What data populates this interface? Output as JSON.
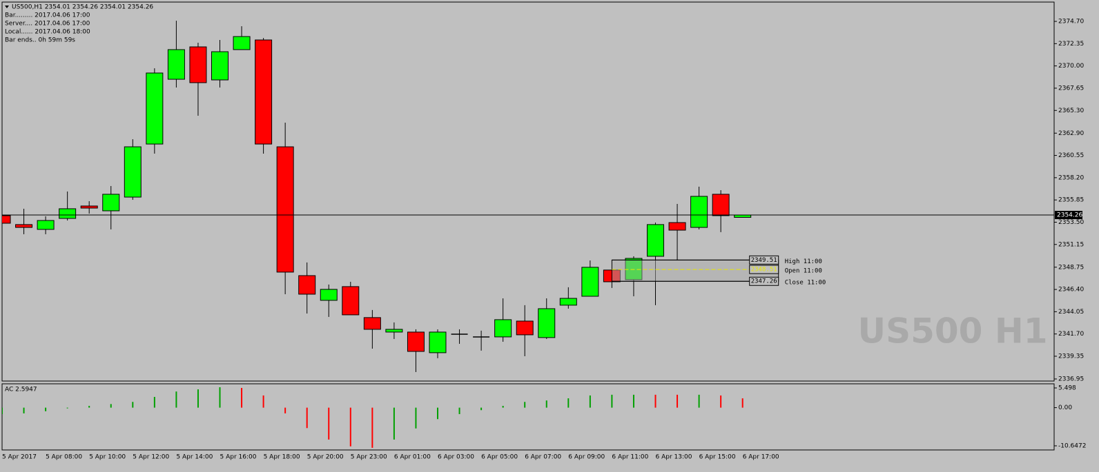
{
  "chart_data": [
    {
      "type": "candlestick",
      "title": "US500,H1  2354.01 2354.26 2354.01 2354.26",
      "info_lines": [
        "Bar......... 2017.04.06 17:00",
        "Server.... 2017.04.06 17:00",
        "Local...... 2017.04.06 18:00",
        "Bar ends.. 0h 59m 59s"
      ],
      "watermark": "US500 H1",
      "categories": [
        "5 Apr 2017",
        null,
        "5 Apr 08:00",
        null,
        "5 Apr 10:00",
        null,
        "5 Apr 12:00",
        null,
        "5 Apr 14:00",
        null,
        "5 Apr 16:00",
        null,
        "5 Apr 18:00",
        null,
        "5 Apr 20:00",
        null,
        "5 Apr 23:00",
        null,
        "6 Apr 01:00",
        null,
        "6 Apr 03:00",
        null,
        "6 Apr 05:00",
        null,
        "6 Apr 07:00",
        null,
        "6 Apr 09:00",
        null,
        "6 Apr 11:00",
        null,
        "6 Apr 13:00",
        null,
        "6 Apr 15:00",
        null,
        "6 Apr 17:00"
      ],
      "open": [
        2354.19,
        2353.25,
        2352.74,
        2353.9,
        2355.21,
        2354.7,
        2356.15,
        2361.75,
        2368.59,
        2372.01,
        2368.52,
        2371.72,
        2372.74,
        2361.46,
        2347.86,
        2345.25,
        2346.7,
        2343.43,
        2341.9,
        2341.9,
        2339.72,
        2341.68,
        2341.39,
        2341.39,
        2343.06,
        2341.32,
        2344.74,
        2345.68,
        2348.45,
        2347.43,
        2349.9,
        2353.46,
        2352.95,
        2356.45,
        2354.01
      ],
      "high": [
        2355.14,
        2354.92,
        2354.12,
        2356.74,
        2355.72,
        2357.32,
        2362.26,
        2369.75,
        2374.77,
        2372.45,
        2372.74,
        2374.19,
        2372.95,
        2364.01,
        2349.25,
        2346.92,
        2347.21,
        2344.23,
        2342.92,
        2342.19,
        2342.19,
        2342.19,
        2342.05,
        2345.46,
        2344.74,
        2345.46,
        2346.63,
        2349.46,
        2348.45,
        2349.9,
        2353.46,
        2355.43,
        2357.25,
        2356.88,
        2354.26
      ],
      "low": [
        2352.81,
        2352.23,
        2352.23,
        2353.68,
        2354.41,
        2352.74,
        2355.86,
        2360.74,
        2367.72,
        2364.74,
        2367.72,
        2371.72,
        2360.74,
        2345.9,
        2343.86,
        2343.5,
        2343.72,
        2340.15,
        2341.17,
        2337.68,
        2339.14,
        2340.66,
        2339.94,
        2340.88,
        2339.35,
        2341.17,
        2344.37,
        2345.68,
        2346.56,
        2345.68,
        2344.74,
        2349.46,
        2352.74,
        2352.45,
        2354.01
      ],
      "close": [
        2353.39,
        2352.95,
        2353.68,
        2354.92,
        2354.99,
        2356.45,
        2361.46,
        2369.25,
        2371.72,
        2368.23,
        2371.5,
        2373.1,
        2361.75,
        2348.23,
        2345.9,
        2346.41,
        2343.72,
        2342.19,
        2342.19,
        2339.86,
        2341.9,
        2341.68,
        2341.39,
        2343.21,
        2341.61,
        2344.37,
        2345.46,
        2348.74,
        2347.21,
        2349.68,
        2353.25,
        2352.66,
        2356.23,
        2354.19,
        2354.26
      ],
      "up_color": "#00ff00",
      "down_color": "#ff0000",
      "doji_color": "#000000",
      "ylim": [
        2336.73,
        2376.74
      ],
      "yticks": [
        {
          "value": 2374.7,
          "label": "2374.70"
        },
        2372.35,
        {
          "value": 2370,
          "label": "2370.00"
        },
        2367.65,
        {
          "value": 2365.3,
          "label": "2365.30"
        },
        {
          "value": 2362.9,
          "label": "2362.90"
        },
        2360.55,
        {
          "value": 2358.2,
          "label": "2358.20"
        },
        2355.85,
        {
          "value": 2353.5,
          "label": "2353.50"
        },
        2351.15,
        2348.75,
        {
          "value": 2346.4,
          "label": "2346.40"
        },
        2344.05,
        {
          "value": 2341.7,
          "label": "2341.70"
        },
        2339.35,
        2336.95
      ],
      "last_price": 2354.26,
      "levels": [
        {
          "value": 2349.51,
          "label": "High 11:00"
        },
        {
          "value": 2348.51,
          "label": "Open 11:00"
        },
        {
          "value": 2347.26,
          "label": "Close 11:00"
        }
      ]
    },
    {
      "type": "bar",
      "title": "AC 2.5947",
      "values": [
        -1.8,
        -1.6,
        -1.0,
        -0.2,
        0.5,
        1.0,
        1.6,
        3.0,
        4.5,
        5.1,
        5.7,
        5.5,
        3.4,
        -1.6,
        -5.7,
        -8.9,
        -10.8,
        -11.2,
        -8.9,
        -5.8,
        -3.2,
        -1.8,
        -0.7,
        0.5,
        1.6,
        2.0,
        2.6,
        3.4,
        3.6,
        3.6,
        3.6,
        3.6,
        3.6,
        3.4,
        2.5947
      ],
      "colors": [
        "#00a000",
        "#00a000",
        "#00a000",
        "#00a000",
        "#00a000",
        "#00a000",
        "#00a000",
        "#00a000",
        "#00a000",
        "#00a000",
        "#00a000",
        "#ff0000",
        "#ff0000",
        "#ff0000",
        "#ff0000",
        "#ff0000",
        "#ff0000",
        "#ff0000",
        "#00a000",
        "#00a000",
        "#00a000",
        "#00a000",
        "#00a000",
        "#00a000",
        "#00a000",
        "#00a000",
        "#00a000",
        "#00a000",
        "#00a000",
        "#00a000",
        "#ff0000",
        "#ff0000",
        "#00a000",
        "#ff0000",
        "#ff0000"
      ],
      "ylim": [
        -11.8,
        6.65
      ],
      "yticks": [
        5.498,
        {
          "value": 0,
          "label": "0.00"
        },
        -10.6472
      ]
    }
  ]
}
